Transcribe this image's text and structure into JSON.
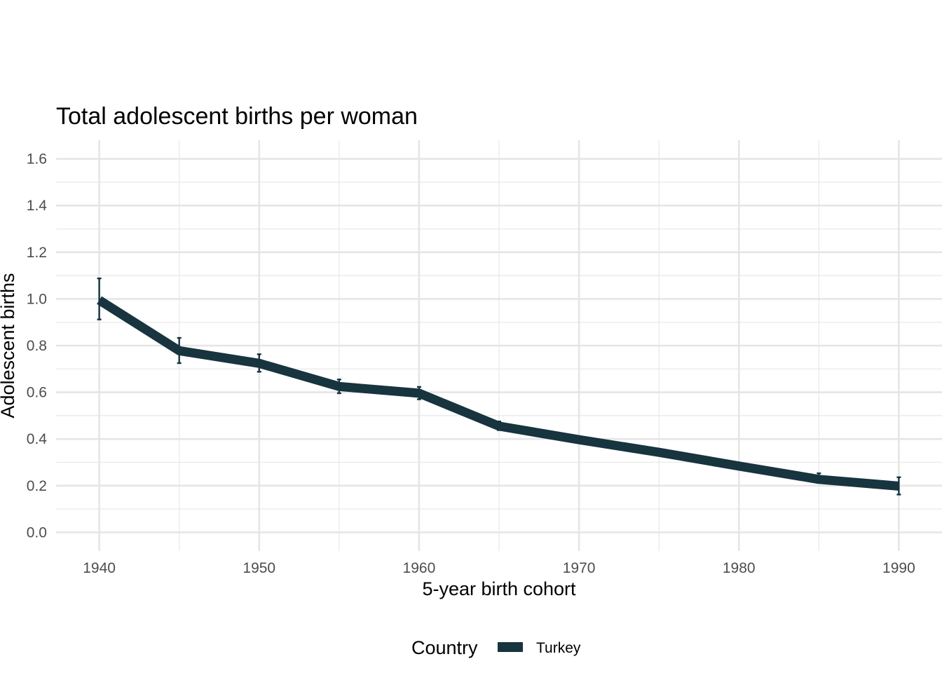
{
  "chart_data": {
    "type": "line",
    "title": "Total adolescent births per woman",
    "xlabel": "5-year birth cohort",
    "ylabel": "Adolescent births",
    "x": [
      1940,
      1945,
      1950,
      1955,
      1960,
      1965,
      1970,
      1975,
      1980,
      1985,
      1990
    ],
    "series": [
      {
        "name": "Turkey",
        "color": "#17343f",
        "values": [
          0.995,
          0.778,
          0.724,
          0.625,
          0.596,
          0.455,
          0.397,
          0.343,
          0.284,
          0.227,
          0.198
        ],
        "error_low": [
          0.912,
          0.725,
          0.688,
          0.596,
          0.57,
          0.438,
          0.385,
          0.332,
          0.271,
          0.212,
          0.162
        ],
        "error_high": [
          1.088,
          0.833,
          0.763,
          0.655,
          0.623,
          0.475,
          0.41,
          0.355,
          0.298,
          0.253,
          0.236
        ]
      }
    ],
    "xlim": [
      1937.3,
      1992.7
    ],
    "ylim": [
      -0.08,
      1.68
    ],
    "x_ticks": [
      "1940",
      "1950",
      "1960",
      "1970",
      "1980",
      "1990"
    ],
    "y_ticks": [
      "0.0",
      "0.2",
      "0.4",
      "0.6",
      "0.8",
      "1.0",
      "1.2",
      "1.4",
      "1.6"
    ],
    "grid": true,
    "legend": {
      "title": "Country",
      "position": "bottom"
    }
  }
}
